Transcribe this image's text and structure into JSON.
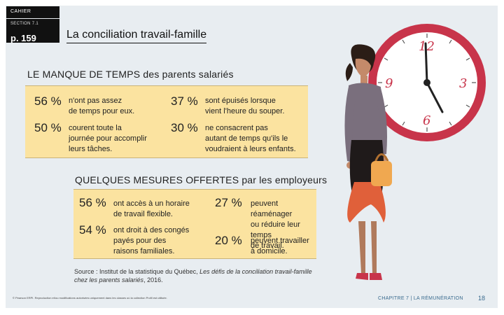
{
  "header": {
    "cahier": "CAHIER",
    "section": "SECTION 7.1",
    "page_ref": "p. 159",
    "title": "La conciliation travail-famille"
  },
  "section1": {
    "title": "LE MANQUE DE TEMPS des parents salariés",
    "stats": [
      {
        "pct": "56 %",
        "line1": "n'ont pas assez",
        "line2": "de temps pour eux."
      },
      {
        "pct": "37 %",
        "line1": "sont épuisés lorsque",
        "line2": "vient l'heure du souper."
      },
      {
        "pct": "50 %",
        "line1": "courent toute la",
        "line2": "journée pour accomplir",
        "line3": "leurs tâches."
      },
      {
        "pct": "30 %",
        "line1": "ne consacrent pas",
        "line2": "autant de temps qu'ils le",
        "line3": "voudraient à leurs enfants."
      }
    ]
  },
  "section2": {
    "title": "QUELQUES MESURES OFFERTES par les employeurs",
    "stats": [
      {
        "pct": "56 %",
        "line1": "ont accès à un horaire",
        "line2": "de travail flexible."
      },
      {
        "pct": "27 %",
        "line1": "peuvent réaménager",
        "line2": "ou réduire leur temps",
        "line3": "de travail."
      },
      {
        "pct": "54 %",
        "line1": "ont droit à des congés",
        "line2": "payés pour des",
        "line3": "raisons familiales."
      },
      {
        "pct": "20 %",
        "line1": "peuvent travailler",
        "line2": "à domicile."
      }
    ]
  },
  "source": {
    "prefix": "Source : Institut de la statistique du Québec, ",
    "title": "Les défis de la conciliation travail-famille chez les parents salariés",
    "suffix": ", 2016."
  },
  "footer": {
    "left": "© Pearson ERPI. Reproduction et/ou modifications autorisées uniquement dans les classes où la collection Profil est utilisée.",
    "chapter": "CHAPITRE 7 | LA RÉMUNÉRATION",
    "page_number": "18"
  },
  "illustration": {
    "clock_numbers": [
      "12",
      "3",
      "6",
      "9"
    ],
    "colors": {
      "clock_red": "#c8344a",
      "box_yellow": "#fbe3a0",
      "dress_orange": "#e0603a",
      "bag_orange": "#f0a850"
    }
  }
}
